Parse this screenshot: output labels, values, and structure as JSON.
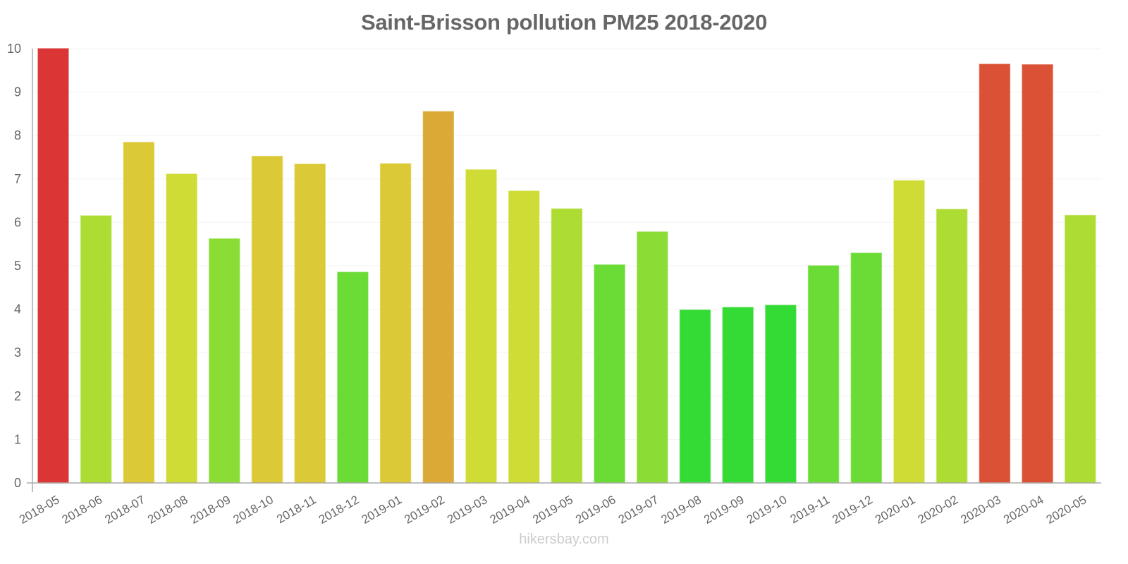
{
  "chart_data": {
    "type": "bar",
    "title": "Saint-Brisson pollution PM25 2018-2020",
    "xlabel": "",
    "ylabel": "",
    "ylim": [
      0,
      10
    ],
    "yticks": [
      0,
      1,
      2,
      3,
      4,
      5,
      6,
      7,
      8,
      9,
      10
    ],
    "grid": true,
    "legend": null,
    "categories": [
      "2018-05",
      "2018-06",
      "2018-07",
      "2018-08",
      "2018-09",
      "2018-10",
      "2018-11",
      "2018-12",
      "2019-01",
      "2019-02",
      "2019-03",
      "2019-04",
      "2019-05",
      "2019-06",
      "2019-07",
      "2019-08",
      "2019-09",
      "2019-10",
      "2019-11",
      "2019-12",
      "2020-01",
      "2020-02",
      "2020-03",
      "2020-04",
      "2020-05"
    ],
    "values": [
      10.0,
      6.15,
      7.84,
      7.11,
      5.62,
      7.52,
      7.34,
      4.85,
      7.35,
      8.55,
      7.21,
      6.72,
      6.31,
      5.02,
      5.78,
      3.98,
      4.04,
      4.09,
      5.0,
      5.29,
      6.96,
      6.3,
      9.64,
      9.63,
      6.16
    ],
    "colors": [
      "#db3535",
      "#addc33",
      "#dbc935",
      "#cfdc35",
      "#8bdc35",
      "#dbc935",
      "#dbc935",
      "#6bdb35",
      "#dbc935",
      "#dba935",
      "#cfdc35",
      "#cfdc35",
      "#addc33",
      "#6bdb35",
      "#8bdc35",
      "#35db35",
      "#35db35",
      "#35db35",
      "#6bdb35",
      "#6bdb35",
      "#cfdc35",
      "#addc33",
      "#db5135",
      "#db5135",
      "#addc33"
    ]
  },
  "watermark": "hikersbay.com"
}
